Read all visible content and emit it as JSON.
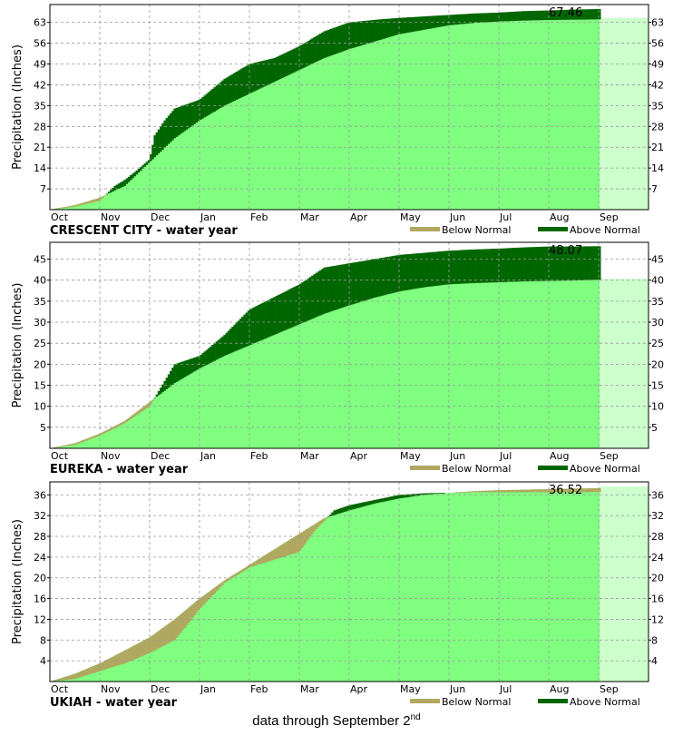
{
  "colors": {
    "normal_fill": "#80ff80",
    "remaining_fill": "#ccffcc",
    "above_normal": "#006600",
    "below_normal": "#b0a860",
    "grid": "#999999"
  },
  "chart_data": [
    {
      "type": "area",
      "title": "CRESCENT CITY - water year",
      "ylabel": "Precipitation (Inches)",
      "x_categories": [
        "Oct",
        "Nov",
        "Dec",
        "Jan",
        "Feb",
        "Mar",
        "Apr",
        "May",
        "Jun",
        "Jul",
        "Aug",
        "Sep"
      ],
      "y_ticks": [
        7,
        14,
        21,
        28,
        35,
        42,
        49,
        56,
        63
      ],
      "ylim": [
        0,
        69
      ],
      "end_label": "67.46",
      "legend": [
        "Below Normal",
        "Above Normal"
      ],
      "grid": true,
      "normal": {
        "x": [
          0,
          0.5,
          1,
          1.5,
          2,
          2.5,
          3,
          3.5,
          4,
          4.5,
          5,
          5.5,
          6,
          6.5,
          7,
          7.5,
          8,
          8.5,
          9,
          9.5,
          10,
          10.5,
          11,
          12
        ],
        "y": [
          0,
          1.5,
          4,
          8,
          16,
          24,
          30,
          35,
          39,
          43,
          47,
          51,
          54,
          56.5,
          59,
          60.5,
          62,
          62.8,
          63.3,
          63.6,
          63.8,
          63.9,
          64,
          64.5
        ]
      },
      "observed": {
        "x": [
          0,
          0.5,
          1,
          1.3,
          1.5,
          1.8,
          2,
          2.1,
          2.3,
          2.5,
          3,
          3.5,
          4,
          4.5,
          5,
          5.5,
          6,
          6.3,
          6.6,
          7,
          7.5,
          8,
          8.5,
          9,
          9.5,
          10,
          10.5,
          10.92
        ],
        "y": [
          0,
          1,
          3,
          8,
          10,
          14,
          17,
          25,
          30,
          34,
          37,
          44,
          49,
          51,
          55,
          60,
          63,
          63.5,
          64,
          64.5,
          65,
          65.5,
          66,
          66.3,
          66.8,
          67,
          67.3,
          67.46
        ]
      }
    },
    {
      "type": "area",
      "title": "EUREKA - water year",
      "ylabel": "Precipitation (Inches)",
      "x_categories": [
        "Oct",
        "Nov",
        "Dec",
        "Jan",
        "Feb",
        "Mar",
        "Apr",
        "May",
        "Jun",
        "Jul",
        "Aug",
        "Sep"
      ],
      "y_ticks": [
        5,
        10,
        15,
        20,
        25,
        30,
        35,
        40,
        45
      ],
      "ylim": [
        0,
        49
      ],
      "end_label": "48.07",
      "legend": [
        "Below Normal",
        "Above Normal"
      ],
      "grid": true,
      "normal": {
        "x": [
          0,
          0.5,
          1,
          1.5,
          2,
          2.5,
          3,
          3.5,
          4,
          4.5,
          5,
          5.5,
          6,
          6.5,
          7,
          7.5,
          8,
          8.5,
          9,
          9.5,
          10,
          10.5,
          11,
          12
        ],
        "y": [
          0,
          1.2,
          3.5,
          6.5,
          11,
          15.5,
          19,
          22,
          24.5,
          27,
          29.5,
          32,
          34,
          35.8,
          37.3,
          38.3,
          39,
          39.3,
          39.5,
          39.7,
          39.8,
          39.9,
          40.1,
          40.3
        ]
      },
      "observed": {
        "x": [
          0,
          0.5,
          1,
          1.5,
          2,
          2.1,
          2.5,
          3,
          3.5,
          4,
          4.5,
          5,
          5.5,
          6,
          6.5,
          7,
          7.5,
          8,
          8.5,
          9,
          9.5,
          10,
          10.5,
          10.92
        ],
        "y": [
          0,
          0.8,
          3,
          6,
          10,
          12,
          20,
          22,
          27,
          33,
          36,
          39,
          43,
          44,
          45,
          46,
          46.5,
          47,
          47.3,
          47.5,
          47.8,
          48,
          48,
          48.07
        ]
      }
    },
    {
      "type": "area",
      "title": "UKIAH - water year",
      "ylabel": "Precipitation (Inches)",
      "x_categories": [
        "Oct",
        "Nov",
        "Dec",
        "Jan",
        "Feb",
        "Mar",
        "Apr",
        "May",
        "Jun",
        "Jul",
        "Aug",
        "Sep"
      ],
      "y_ticks": [
        4,
        8,
        12,
        16,
        20,
        24,
        28,
        32,
        36
      ],
      "ylim": [
        0,
        38.5
      ],
      "end_label": "36.52",
      "legend": [
        "Below Normal",
        "Above Normal"
      ],
      "grid": true,
      "normal": {
        "x": [
          0,
          0.5,
          1,
          1.5,
          2,
          2.5,
          3,
          3.5,
          4,
          4.5,
          5,
          5.5,
          6,
          6.5,
          7,
          7.5,
          8,
          8.5,
          9,
          9.5,
          10,
          10.5,
          11,
          12
        ],
        "y": [
          0,
          1.5,
          3.5,
          6,
          8.5,
          12,
          16,
          19.5,
          22.5,
          25.5,
          28.5,
          31.5,
          33,
          34.3,
          35.3,
          36,
          36.4,
          36.7,
          36.9,
          37,
          37.1,
          37.2,
          37.3,
          37.6
        ]
      },
      "observed": {
        "x": [
          0,
          0.5,
          1,
          1.5,
          2,
          2.5,
          2.8,
          3,
          3.3,
          3.5,
          4,
          4.5,
          5,
          5.3,
          5.7,
          6,
          6.5,
          7,
          7.5,
          8,
          8.5,
          9,
          9.5,
          10,
          10.5,
          10.92
        ],
        "y": [
          0,
          0.5,
          2,
          3.5,
          5.5,
          8,
          11.5,
          14,
          17,
          19,
          22,
          23.5,
          25,
          29,
          33,
          34,
          35,
          36,
          36.3,
          36.4,
          36.5,
          36.5,
          36.5,
          36.5,
          36.52,
          36.52
        ]
      }
    }
  ],
  "footnote": {
    "text": "data through September 2",
    "suffix": "nd"
  }
}
